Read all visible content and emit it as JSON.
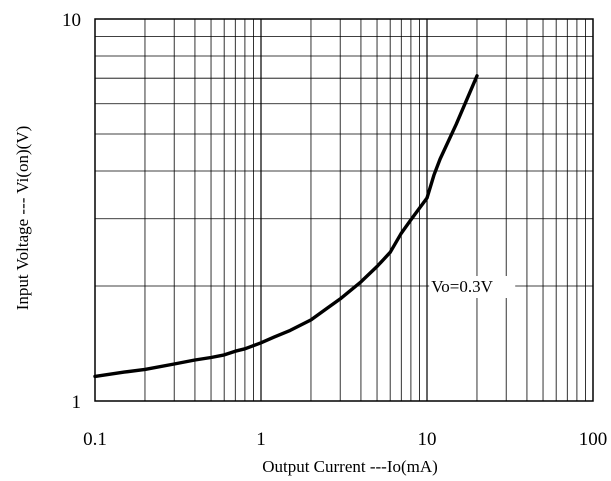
{
  "chart_data": {
    "type": "line",
    "xscale": "log",
    "yscale": "log",
    "xlim": [
      0.1,
      100
    ],
    "ylim": [
      1,
      10
    ],
    "grid": true,
    "xlabel": "Output Current ---Io(mA)",
    "ylabel": "Input Voltage --- Vi(on)(V)",
    "xticks": [
      "0.1",
      "1",
      "10",
      "100"
    ],
    "yticks": [
      "1",
      "10"
    ],
    "annotation": "Vo=0.3V",
    "line_color": "#000000",
    "series": [
      {
        "x": [
          0.1,
          0.15,
          0.2,
          0.3,
          0.4,
          0.5,
          0.6,
          0.7,
          0.8,
          1.0,
          1.2,
          1.5,
          2.0,
          2.5,
          3.0,
          4.0,
          5.0,
          6.0,
          7.0,
          8.0,
          10.0,
          11.0,
          12.0,
          15.0,
          20.0
        ],
        "y": [
          1.16,
          1.19,
          1.21,
          1.25,
          1.28,
          1.3,
          1.32,
          1.35,
          1.37,
          1.42,
          1.47,
          1.53,
          1.63,
          1.75,
          1.85,
          2.05,
          2.25,
          2.45,
          2.75,
          2.98,
          3.4,
          3.9,
          4.3,
          5.3,
          7.1
        ]
      }
    ]
  }
}
